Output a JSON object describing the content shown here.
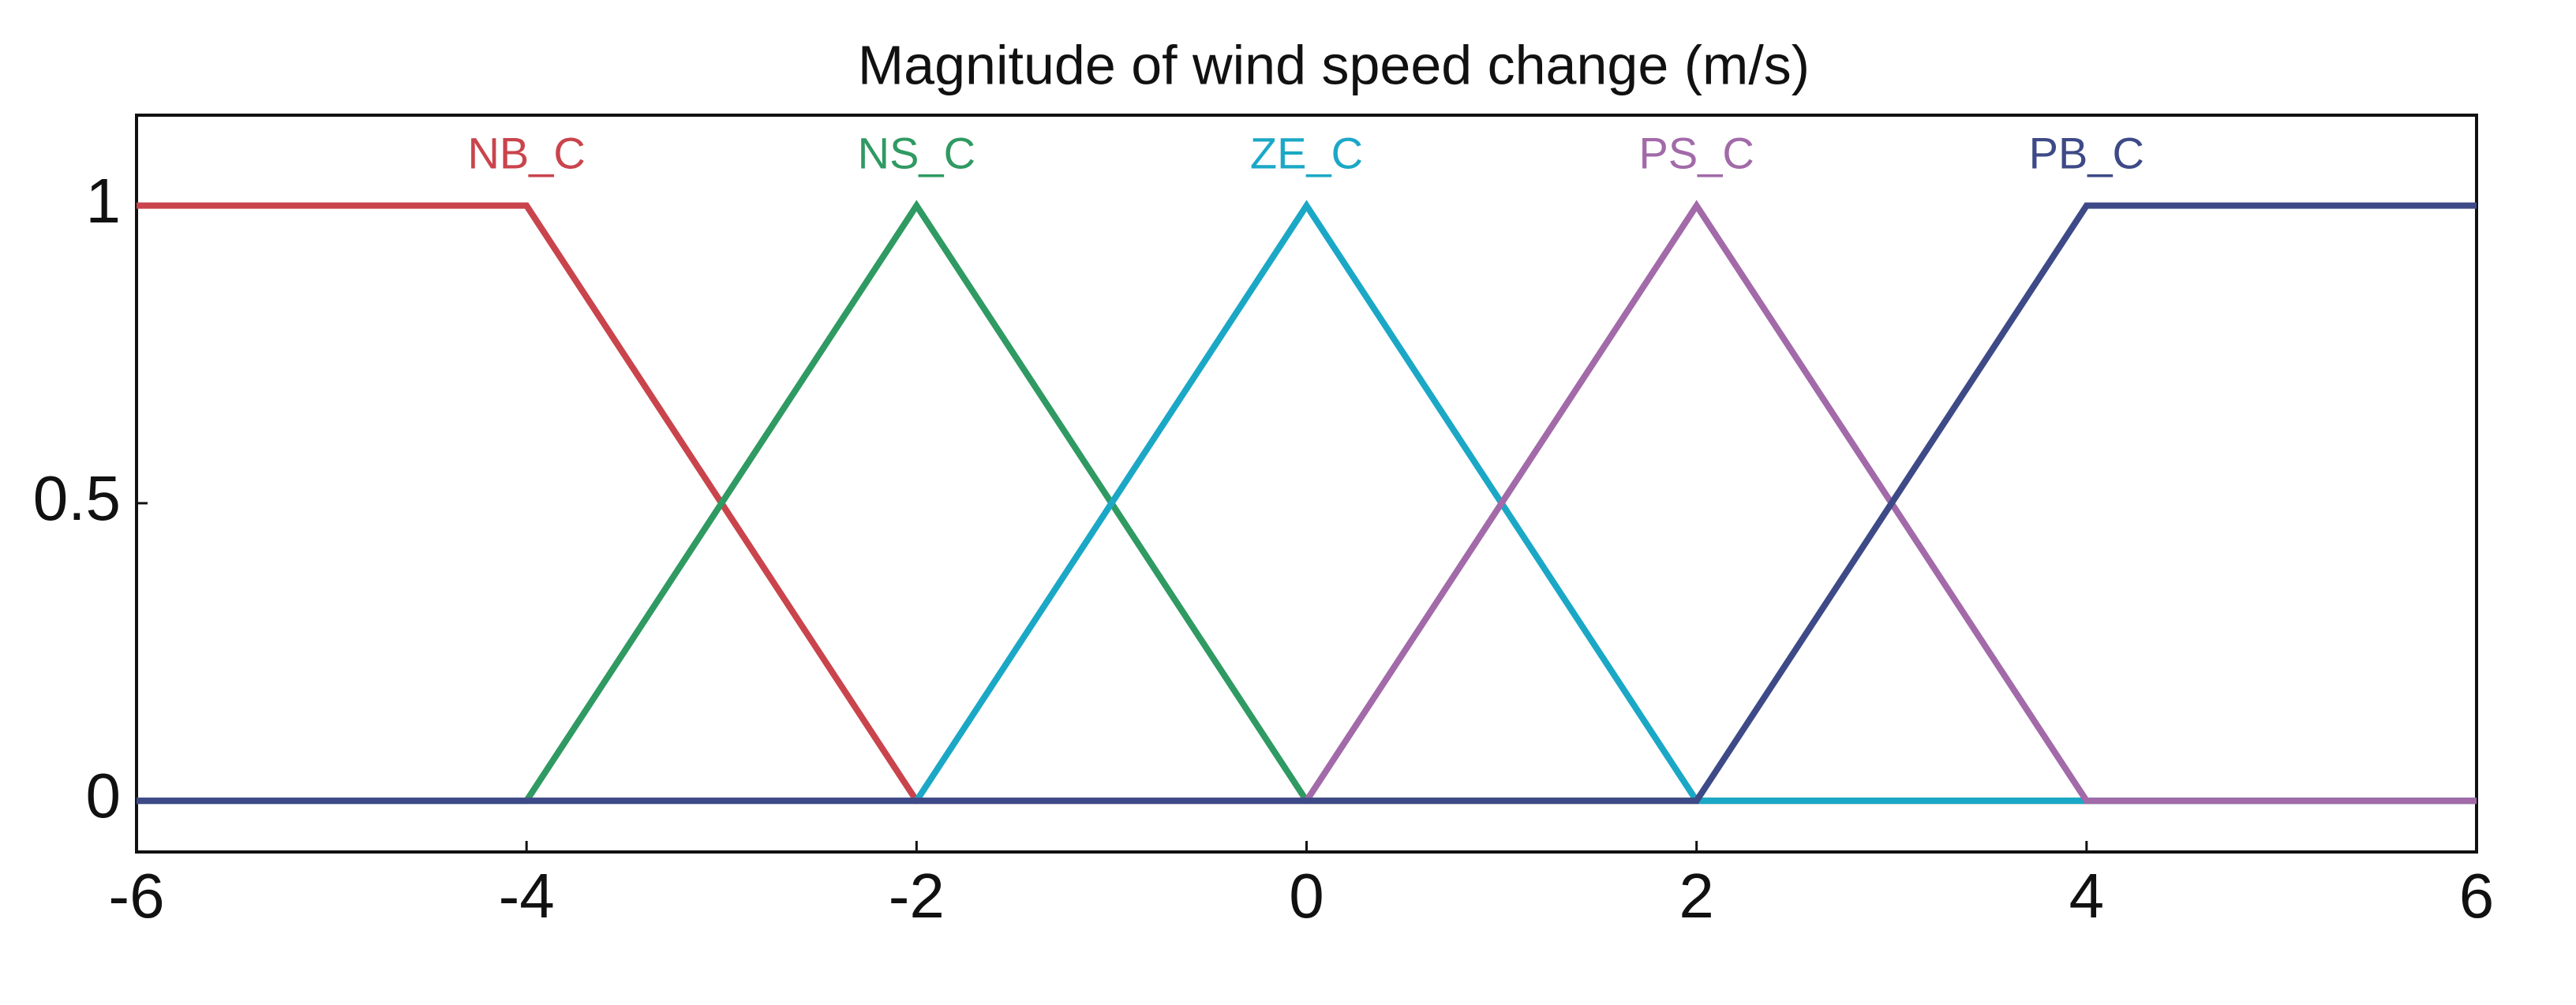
{
  "chart_data": {
    "type": "line",
    "title": "Magnitude of wind speed change   (m/s)",
    "xlim": [
      -6,
      6
    ],
    "ylim": [
      -0.086,
      1.152
    ],
    "xticks": [
      -6,
      -4,
      -2,
      0,
      2,
      4,
      6
    ],
    "yticks": [
      0,
      0.5,
      1
    ],
    "series": [
      {
        "name": "NB_C",
        "color": "#c9444c",
        "x": [
          -6,
          -4,
          -2,
          6
        ],
        "values": [
          1,
          1,
          0,
          0
        ]
      },
      {
        "name": "NS_C",
        "color": "#2f9a62",
        "x": [
          -6,
          -4,
          -2,
          0,
          6
        ],
        "values": [
          0,
          0,
          1,
          0,
          0
        ]
      },
      {
        "name": "ZE_C",
        "color": "#1ba8c6",
        "x": [
          -6,
          -2,
          0,
          2,
          6
        ],
        "values": [
          0,
          0,
          1,
          0,
          0
        ]
      },
      {
        "name": "PS_C",
        "color": "#a26aa9",
        "x": [
          -6,
          0,
          2,
          4,
          6
        ],
        "values": [
          0,
          0,
          1,
          0,
          0
        ]
      },
      {
        "name": "PB_C",
        "color": "#3e4a87",
        "x": [
          -6,
          2,
          4,
          6
        ],
        "values": [
          0,
          0,
          1,
          1
        ]
      }
    ]
  }
}
